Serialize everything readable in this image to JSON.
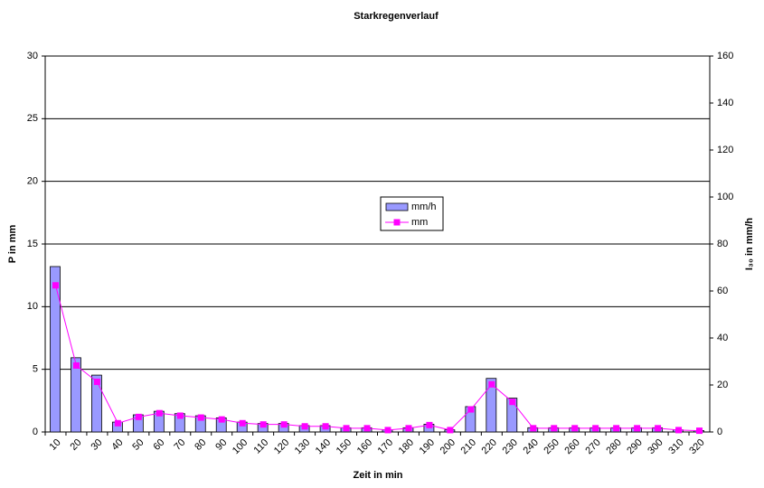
{
  "chart_data": {
    "type": "bar-line",
    "title": "Starkregenverlauf",
    "x_label": "Zeit in min",
    "y_label": "P in mm",
    "y2_label": "I₃₀ in mm/h",
    "categories": [
      "10",
      "20",
      "30",
      "40",
      "50",
      "60",
      "70",
      "80",
      "90",
      "100",
      "110",
      "120",
      "130",
      "140",
      "150",
      "160",
      "170",
      "180",
      "190",
      "200",
      "210",
      "220",
      "230",
      "240",
      "250",
      "260",
      "270",
      "280",
      "290",
      "300",
      "310",
      "320"
    ],
    "series": [
      {
        "name": "mm/h",
        "type": "bar",
        "axis": "y2",
        "color": "#9999ff",
        "values": [
          70.4,
          31.6,
          24.2,
          4.2,
          7.3,
          8.8,
          7.8,
          6.9,
          6.0,
          4.2,
          3.6,
          3.6,
          2.7,
          2.7,
          1.8,
          1.8,
          0.9,
          1.8,
          3.3,
          0.9,
          10.8,
          22.8,
          14.4,
          1.8,
          1.8,
          1.8,
          1.8,
          1.8,
          1.8,
          1.8,
          0.9,
          0.6
        ]
      },
      {
        "name": "mm",
        "type": "line",
        "axis": "y",
        "color": "#ff00ff",
        "values": [
          11.7,
          5.3,
          4.0,
          0.7,
          1.2,
          1.5,
          1.3,
          1.15,
          1.0,
          0.7,
          0.6,
          0.6,
          0.45,
          0.45,
          0.3,
          0.3,
          0.15,
          0.3,
          0.55,
          0.15,
          1.8,
          3.8,
          2.4,
          0.3,
          0.3,
          0.3,
          0.3,
          0.3,
          0.3,
          0.3,
          0.15,
          0.1
        ]
      }
    ],
    "ylim": [
      0,
      30
    ],
    "yticks": [
      0,
      5,
      10,
      15,
      20,
      25,
      30
    ],
    "y2lim": [
      0,
      160
    ],
    "y2ticks": [
      0,
      20,
      40,
      60,
      80,
      100,
      120,
      140,
      160
    ],
    "grid": true
  }
}
